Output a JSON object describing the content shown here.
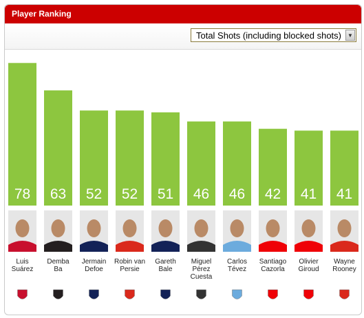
{
  "widget": {
    "title": "Player Ranking",
    "metric_selected": "Total Shots (including blocked shots)"
  },
  "colors": {
    "header": "#cc0000",
    "bar": "#8dc63f"
  },
  "chart_data": {
    "type": "bar",
    "title": "Player Ranking",
    "categories": [
      "Luis Suárez",
      "Demba Ba",
      "Jermain Defoe",
      "Robin van Persie",
      "Gareth Bale",
      "Miguel Pérez Cuesta",
      "Carlos Tévez",
      "Santiago Cazorla",
      "Olivier Giroud",
      "Wayne Rooney"
    ],
    "series": [
      {
        "values": [
          78,
          63,
          52,
          52,
          51,
          46,
          46,
          42,
          41,
          41
        ]
      }
    ],
    "data_labels": true,
    "players": [
      {
        "name_lines": [
          "Luis",
          "Suárez"
        ],
        "club_icon": "liverpool-crest-icon",
        "club_color": "#c8102e"
      },
      {
        "name_lines": [
          "Demba",
          "Ba"
        ],
        "club_icon": "newcastle-crest-icon",
        "club_color": "#241f20"
      },
      {
        "name_lines": [
          "Jermain",
          "Defoe"
        ],
        "club_icon": "tottenham-crest-icon",
        "club_color": "#132257"
      },
      {
        "name_lines": [
          "Robin van",
          "Persie"
        ],
        "club_icon": "manchester-united-crest-icon",
        "club_color": "#da291c"
      },
      {
        "name_lines": [
          "Gareth",
          "Bale"
        ],
        "club_icon": "tottenham-crest-icon",
        "club_color": "#132257"
      },
      {
        "name_lines": [
          "Miguel",
          "Pérez",
          "Cuesta"
        ],
        "club_icon": "swansea-crest-icon",
        "club_color": "#333333"
      },
      {
        "name_lines": [
          "Carlos",
          "Tévez"
        ],
        "club_icon": "manchester-city-crest-icon",
        "club_color": "#6cabdd"
      },
      {
        "name_lines": [
          "Santiago",
          "Cazorla"
        ],
        "club_icon": "arsenal-crest-icon",
        "club_color": "#ef0107"
      },
      {
        "name_lines": [
          "Olivier",
          "Giroud"
        ],
        "club_icon": "arsenal-crest-icon",
        "club_color": "#ef0107"
      },
      {
        "name_lines": [
          "Wayne",
          "Rooney"
        ],
        "club_icon": "manchester-united-crest-icon",
        "club_color": "#da291c"
      }
    ]
  }
}
